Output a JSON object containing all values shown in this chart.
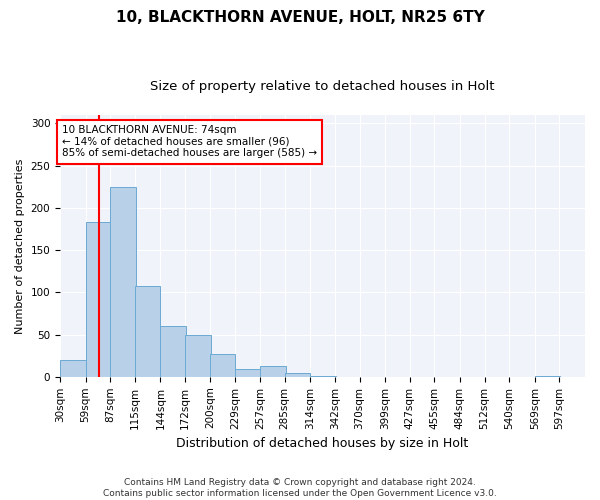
{
  "title1": "10, BLACKTHORN AVENUE, HOLT, NR25 6TY",
  "title2": "Size of property relative to detached houses in Holt",
  "xlabel": "Distribution of detached houses by size in Holt",
  "ylabel": "Number of detached properties",
  "bar_values": [
    20,
    183,
    225,
    107,
    60,
    50,
    27,
    9,
    13,
    4,
    1,
    0,
    0,
    0,
    0,
    0,
    0,
    0,
    0,
    1,
    0
  ],
  "bin_edges": [
    30,
    59,
    87,
    115,
    144,
    172,
    200,
    229,
    257,
    285,
    314,
    342,
    370,
    399,
    427,
    455,
    484,
    512,
    540,
    569,
    597
  ],
  "tick_labels": [
    "30sqm",
    "59sqm",
    "87sqm",
    "115sqm",
    "144sqm",
    "172sqm",
    "200sqm",
    "229sqm",
    "257sqm",
    "285sqm",
    "314sqm",
    "342sqm",
    "370sqm",
    "399sqm",
    "427sqm",
    "455sqm",
    "484sqm",
    "512sqm",
    "540sqm",
    "569sqm",
    "597sqm"
  ],
  "bar_color": "#b8d0e8",
  "bar_edge_color": "#6aaad4",
  "red_line_x": 74,
  "annotation_text": "10 BLACKTHORN AVENUE: 74sqm\n← 14% of detached houses are smaller (96)\n85% of semi-detached houses are larger (585) →",
  "annotation_box_color": "white",
  "annotation_box_edge_color": "red",
  "red_line_color": "red",
  "ylim": [
    0,
    310
  ],
  "yticks": [
    0,
    50,
    100,
    150,
    200,
    250,
    300
  ],
  "footer_text": "Contains HM Land Registry data © Crown copyright and database right 2024.\nContains public sector information licensed under the Open Government Licence v3.0.",
  "title1_fontsize": 11,
  "title2_fontsize": 9.5,
  "xlabel_fontsize": 9,
  "ylabel_fontsize": 8,
  "tick_fontsize": 7.5,
  "annotation_fontsize": 7.5,
  "footer_fontsize": 6.5,
  "bg_color": "#f0f4fa"
}
